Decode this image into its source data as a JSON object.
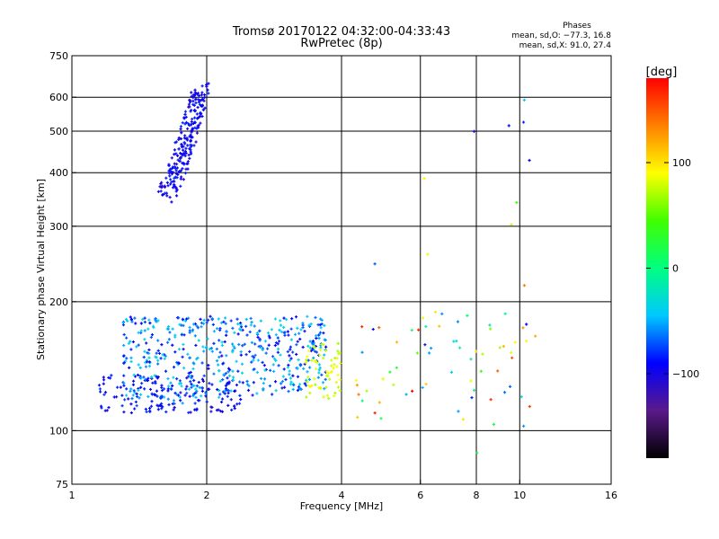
{
  "chart_data": {
    "type": "scatter",
    "title": "Tromsø 20170122 04:32:00-04:33:43",
    "subtitle": "RwPretec (8p)",
    "xlabel": "Frequency [MHz]",
    "ylabel": "Stationary phase Virtual Height [km]",
    "x_scale": "log",
    "y_scale": "log",
    "xlim": [
      1,
      16
    ],
    "ylim": [
      75,
      750
    ],
    "x_ticks": [
      1,
      2,
      4,
      6,
      8,
      10,
      16
    ],
    "y_ticks": [
      75,
      100,
      200,
      300,
      400,
      500,
      600,
      750
    ],
    "x_grid": [
      2,
      4,
      6,
      8,
      10
    ],
    "y_grid": [
      100,
      200,
      300,
      400,
      500,
      600
    ],
    "grid": true,
    "stats": {
      "title": "Phases",
      "line1": "mean, sd,O: −77.3, 16.8",
      "line2": "mean, sd,X:  91.0, 27.4"
    },
    "colorbar": {
      "label": "[deg]",
      "range": [
        -180,
        180
      ],
      "ticks": [
        100,
        0,
        -100
      ],
      "tick_labels": [
        "100",
        "0",
        "−100"
      ],
      "colors": [
        "#000000",
        "#5a1a8a",
        "#0000ff",
        "#00c8ff",
        "#00ff80",
        "#40ff00",
        "#ffff00",
        "#ff8000",
        "#ff0000"
      ]
    },
    "point_groups": [
      {
        "name": "F2 trace (phase ≈ −95°)",
        "x_range": [
          1.58,
          2.05
        ],
        "y_range": [
          355,
          640
        ],
        "phase": -95,
        "count": 240,
        "note": "curved column rising from ~360 km at 1.6 MHz to ~640 km at 1.9 MHz"
      },
      {
        "name": "E/F1 cloud lower branch (phase ≈ −90°)",
        "x_range": [
          1.15,
          2.4
        ],
        "y_range": [
          110,
          135
        ],
        "phase": -90,
        "count": 150
      },
      {
        "name": "E/F1 cloud main body (phase −100° to −40°)",
        "x_range": [
          1.3,
          3.7
        ],
        "y_range": [
          112,
          185
        ],
        "phase": -75,
        "count": 520
      },
      {
        "name": "E/F1 cloud high-frequency edge (phase ≈ +60° to +95°)",
        "x_range": [
          3.3,
          4.0
        ],
        "y_range": [
          118,
          160
        ],
        "phase": 80,
        "count": 60
      },
      {
        "name": "scattered points 4–11 MHz (phase −100° to +180°)",
        "x_range": [
          4.3,
          11.0
        ],
        "y_range": [
          85,
          600
        ],
        "phase": 100,
        "count": 80
      }
    ]
  }
}
